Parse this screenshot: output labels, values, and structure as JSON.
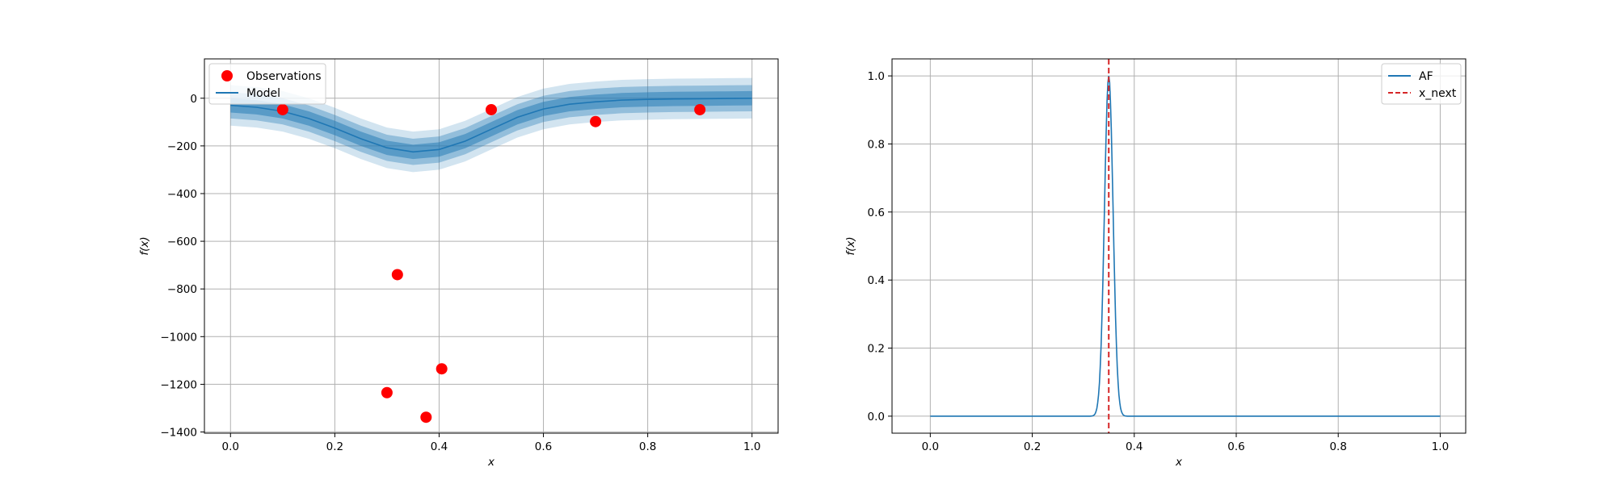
{
  "chart_data": [
    {
      "type": "line",
      "xlabel": "x",
      "ylabel": "f(x)",
      "xlim": [
        -0.05,
        1.05
      ],
      "ylim": [
        -1405,
        165
      ],
      "xticks": [
        0.0,
        0.2,
        0.4,
        0.6,
        0.8,
        1.0
      ],
      "yticks": [
        -1400,
        -1200,
        -1000,
        -800,
        -600,
        -400,
        -200,
        0
      ],
      "xtick_labels": [
        "0.0",
        "0.2",
        "0.4",
        "0.6",
        "0.8",
        "1.0"
      ],
      "ytick_labels": [
        "−1400",
        "−1200",
        "−1000",
        "−800",
        "−600",
        "−400",
        "−200",
        "0"
      ],
      "grid": true,
      "legend_position": "upper-left",
      "series": [
        {
          "name": "Observations",
          "kind": "scatter",
          "color": "#ff0000",
          "x": [
            0.1,
            0.3,
            0.32,
            0.375,
            0.405,
            0.5,
            0.7,
            0.9
          ],
          "y": [
            -48,
            -1235,
            -740,
            -1338,
            -1135,
            -48,
            -98,
            -48
          ]
        },
        {
          "name": "Model",
          "kind": "line",
          "color": "#1f77b4",
          "x": [
            0.0,
            0.05,
            0.1,
            0.15,
            0.2,
            0.25,
            0.3,
            0.35,
            0.4,
            0.45,
            0.5,
            0.55,
            0.6,
            0.65,
            0.7,
            0.75,
            0.8,
            0.85,
            0.9,
            0.95,
            1.0
          ],
          "y": [
            -30,
            -38,
            -55,
            -85,
            -125,
            -170,
            -208,
            -225,
            -215,
            -180,
            -130,
            -80,
            -45,
            -25,
            -15,
            -8,
            -5,
            -3,
            -2,
            -1,
            0
          ],
          "bands": [
            {
              "half_width": 30,
              "opacity": 0.5
            },
            {
              "half_width": 55,
              "opacity": 0.35
            },
            {
              "half_width": 85,
              "opacity": 0.2
            }
          ]
        }
      ]
    },
    {
      "type": "line",
      "xlabel": "x",
      "ylabel": "f(x)",
      "xlim": [
        -0.075,
        1.05
      ],
      "ylim": [
        -0.05,
        1.05
      ],
      "xticks": [
        0.0,
        0.2,
        0.4,
        0.6,
        0.8,
        1.0
      ],
      "yticks": [
        0.0,
        0.2,
        0.4,
        0.6,
        0.8,
        1.0
      ],
      "xtick_labels": [
        "0.0",
        "0.2",
        "0.4",
        "0.6",
        "0.8",
        "1.0"
      ],
      "ytick_labels": [
        "0.0",
        "0.2",
        "0.4",
        "0.6",
        "0.8",
        "1.0"
      ],
      "grid": true,
      "legend_position": "upper-right",
      "series": [
        {
          "name": "AF",
          "kind": "line",
          "color": "#1f77b4",
          "peak_x": 0.35,
          "peak_y": 1.0,
          "peak_width": 0.0085
        },
        {
          "name": "x_next",
          "kind": "vline",
          "color": "#d62728",
          "x": 0.35
        }
      ]
    }
  ]
}
